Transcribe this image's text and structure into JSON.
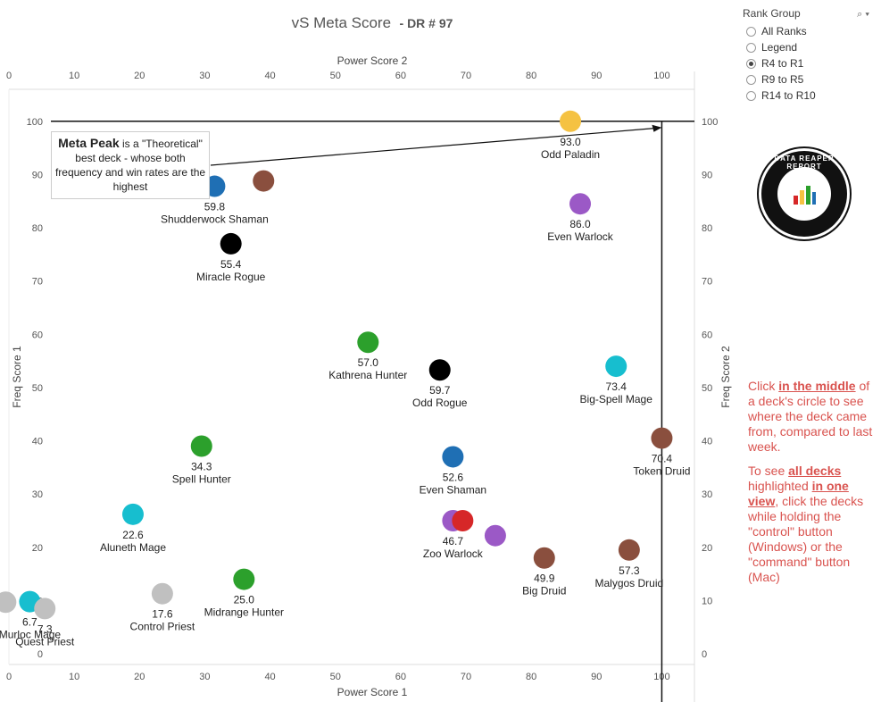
{
  "title": {
    "main": "vS Meta Score",
    "sub": "- DR # 97"
  },
  "chart_data": {
    "type": "scatter",
    "xlabel": "Power Score 1",
    "xlabel_top": "Power Score 2",
    "ylabel": "Freq Score 1",
    "ylabel_right": "Freq Score 2",
    "xlim": [
      0,
      105
    ],
    "ylim": [
      -2,
      106
    ],
    "xticks": [
      0,
      10,
      20,
      30,
      40,
      50,
      60,
      70,
      80,
      90,
      100
    ],
    "yticks": [
      0,
      10,
      20,
      30,
      40,
      50,
      60,
      70,
      80,
      90,
      100
    ],
    "reference_lines": {
      "x": 100,
      "y": 100
    },
    "points": [
      {
        "name": "Odd Paladin",
        "score": "93.0",
        "x": 86,
        "y": 100,
        "color": "#f5c242",
        "labeled": true
      },
      {
        "name": "Shudderwock Shaman",
        "score": "59.8",
        "x": 31.5,
        "y": 87.8,
        "color": "#1f6fb4",
        "labeled": true
      },
      {
        "name": "",
        "score": "",
        "x": 39,
        "y": 88.8,
        "color": "#8a4f3e",
        "labeled": false
      },
      {
        "name": "Even Warlock",
        "score": "86.0",
        "x": 87.5,
        "y": 84.5,
        "color": "#9b59c6",
        "labeled": true
      },
      {
        "name": "Miracle Rogue",
        "score": "55.4",
        "x": 34,
        "y": 77,
        "color": "#000000",
        "labeled": true
      },
      {
        "name": "Kathrena Hunter",
        "score": "57.0",
        "x": 55,
        "y": 58.5,
        "color": "#2ca02c",
        "labeled": true
      },
      {
        "name": "Odd Rogue",
        "score": "59.7",
        "x": 66,
        "y": 53.3,
        "color": "#000000",
        "labeled": true
      },
      {
        "name": "Big-Spell Mage",
        "score": "73.4",
        "x": 93,
        "y": 54,
        "color": "#17becf",
        "labeled": true
      },
      {
        "name": "Spell Hunter",
        "score": "34.3",
        "x": 29.5,
        "y": 39,
        "color": "#2ca02c",
        "labeled": true
      },
      {
        "name": "Even Shaman",
        "score": "52.6",
        "x": 68,
        "y": 37,
        "color": "#1f6fb4",
        "labeled": true
      },
      {
        "name": "Token Druid",
        "score": "70.4",
        "x": 100,
        "y": 40.5,
        "color": "#8a4f3e",
        "labeled": true
      },
      {
        "name": "Aluneth Mage",
        "score": "22.6",
        "x": 19,
        "y": 26.2,
        "color": "#17becf",
        "labeled": true
      },
      {
        "name": "Zoo Warlock",
        "score": "46.7",
        "x": 68,
        "y": 25,
        "color": "#9b59c6",
        "labeled": true
      },
      {
        "name": "",
        "score": "",
        "x": 69.5,
        "y": 25,
        "color": "#d62728",
        "labeled": false
      },
      {
        "name": "",
        "score": "",
        "x": 74.5,
        "y": 22.2,
        "color": "#9b59c6",
        "labeled": false
      },
      {
        "name": "Big Druid",
        "score": "49.9",
        "x": 82,
        "y": 18,
        "color": "#8a4f3e",
        "labeled": true
      },
      {
        "name": "Malygos Druid",
        "score": "57.3",
        "x": 95,
        "y": 19.5,
        "color": "#8a4f3e",
        "labeled": true
      },
      {
        "name": "Midrange Hunter",
        "score": "25.0",
        "x": 36,
        "y": 14,
        "color": "#2ca02c",
        "labeled": true
      },
      {
        "name": "Control Priest",
        "score": "17.6",
        "x": 23.5,
        "y": 11.3,
        "color": "#c0c0c0",
        "labeled": true
      },
      {
        "name": "Murloc Mage",
        "score": "6.7",
        "x": 3.2,
        "y": 9.8,
        "color": "#17becf",
        "labeled": true
      },
      {
        "name": "Quest Priest",
        "score": "7.3",
        "x": 5.5,
        "y": 8.5,
        "color": "#c0c0c0",
        "labeled": true
      },
      {
        "name": "",
        "score": "",
        "x": -0.5,
        "y": 9.7,
        "color": "#c0c0c0",
        "labeled": false
      }
    ]
  },
  "annotation": {
    "bold": "Meta Peak",
    "rest": " is a \"Theoretical\" best deck - whose both frequency and win rates are the highest"
  },
  "rank_group": {
    "title": "Rank Group",
    "options": [
      {
        "label": "All Ranks",
        "selected": false
      },
      {
        "label": "Legend",
        "selected": false
      },
      {
        "label": "R4 to R1",
        "selected": true
      },
      {
        "label": "R9 to R5",
        "selected": false
      },
      {
        "label": "R14 to R10",
        "selected": false
      }
    ]
  },
  "logo_text": "DATA REAPER REPORT",
  "help": {
    "p1_a": "Click ",
    "p1_u": "in the middle",
    "p1_b": " of a deck's circle to see where the deck came from, compared to last week.",
    "p2_a": "To see ",
    "p2_u1": "all decks ",
    "p2_b": " highlighted ",
    "p2_u2": "in one view",
    "p2_c": ", click the decks while holding the \"control\" button (Windows) or the \"command\" button (Mac)"
  }
}
